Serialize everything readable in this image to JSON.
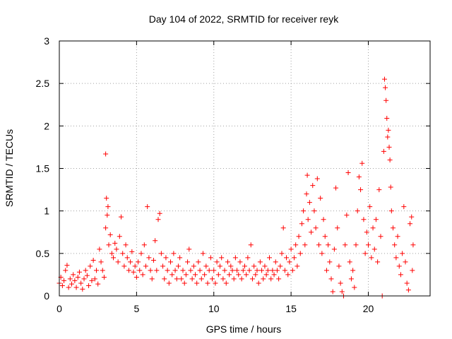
{
  "chart_data": {
    "type": "scatter",
    "title": "Day 104 of 2022, SRMTID for receiver reyk",
    "xlabel": "GPS time / hours",
    "ylabel": "SRMTID / TECUs",
    "xlim": [
      0,
      24
    ],
    "ylim": [
      0,
      3
    ],
    "x_ticks": [
      0,
      5,
      10,
      15,
      20
    ],
    "y_ticks": [
      0,
      0.5,
      1,
      1.5,
      2,
      2.5,
      3
    ],
    "x_tick_labels": [
      "0",
      "5",
      "10",
      "15",
      "20"
    ],
    "y_tick_labels": [
      "0",
      "0.5",
      "1",
      "1.5",
      "2",
      "2.5",
      "3"
    ],
    "grid": true,
    "marker": "+",
    "color": "#ff0000",
    "series": [
      {
        "name": "SRMTID",
        "points": [
          [
            0.0,
            0.15
          ],
          [
            0.1,
            0.22
          ],
          [
            0.2,
            0.12
          ],
          [
            0.3,
            0.18
          ],
          [
            0.4,
            0.3
          ],
          [
            0.5,
            0.36
          ],
          [
            0.6,
            0.1
          ],
          [
            0.7,
            0.2
          ],
          [
            0.8,
            0.14
          ],
          [
            0.9,
            0.25
          ],
          [
            1.0,
            0.18
          ],
          [
            1.1,
            0.1
          ],
          [
            1.2,
            0.22
          ],
          [
            1.3,
            0.28
          ],
          [
            1.4,
            0.15
          ],
          [
            1.5,
            0.08
          ],
          [
            1.6,
            0.2
          ],
          [
            1.7,
            0.3
          ],
          [
            1.8,
            0.24
          ],
          [
            1.9,
            0.12
          ],
          [
            2.0,
            0.35
          ],
          [
            2.1,
            0.18
          ],
          [
            2.2,
            0.42
          ],
          [
            2.3,
            0.2
          ],
          [
            2.4,
            0.3
          ],
          [
            2.5,
            0.14
          ],
          [
            2.6,
            0.55
          ],
          [
            2.7,
            0.4
          ],
          [
            2.8,
            0.3
          ],
          [
            2.9,
            0.22
          ],
          [
            3.0,
            1.67
          ],
          [
            3.0,
            0.8
          ],
          [
            3.05,
            1.15
          ],
          [
            3.1,
            0.95
          ],
          [
            3.15,
            1.05
          ],
          [
            3.2,
            0.6
          ],
          [
            3.3,
            0.72
          ],
          [
            3.4,
            0.5
          ],
          [
            3.5,
            0.45
          ],
          [
            3.6,
            0.62
          ],
          [
            3.7,
            0.55
          ],
          [
            3.8,
            0.4
          ],
          [
            3.9,
            0.7
          ],
          [
            4.0,
            0.93
          ],
          [
            4.1,
            0.5
          ],
          [
            4.2,
            0.35
          ],
          [
            4.3,
            0.6
          ],
          [
            4.4,
            0.45
          ],
          [
            4.5,
            0.3
          ],
          [
            4.6,
            0.4
          ],
          [
            4.7,
            0.52
          ],
          [
            4.8,
            0.28
          ],
          [
            4.9,
            0.35
          ],
          [
            5.0,
            0.22
          ],
          [
            5.1,
            0.4
          ],
          [
            5.2,
            0.3
          ],
          [
            5.3,
            0.5
          ],
          [
            5.4,
            0.25
          ],
          [
            5.5,
            0.6
          ],
          [
            5.6,
            0.35
          ],
          [
            5.7,
            1.05
          ],
          [
            5.8,
            0.45
          ],
          [
            5.9,
            0.3
          ],
          [
            6.0,
            0.2
          ],
          [
            6.1,
            0.42
          ],
          [
            6.2,
            0.65
          ],
          [
            6.3,
            0.3
          ],
          [
            6.4,
            0.9
          ],
          [
            6.5,
            0.97
          ],
          [
            6.6,
            0.5
          ],
          [
            6.7,
            0.35
          ],
          [
            6.8,
            0.2
          ],
          [
            6.9,
            0.45
          ],
          [
            7.0,
            0.3
          ],
          [
            7.1,
            0.15
          ],
          [
            7.2,
            0.4
          ],
          [
            7.3,
            0.25
          ],
          [
            7.4,
            0.5
          ],
          [
            7.5,
            0.3
          ],
          [
            7.6,
            0.2
          ],
          [
            7.7,
            0.35
          ],
          [
            7.8,
            0.45
          ],
          [
            7.9,
            0.2
          ],
          [
            8.0,
            0.3
          ],
          [
            8.1,
            0.15
          ],
          [
            8.2,
            0.25
          ],
          [
            8.3,
            0.4
          ],
          [
            8.4,
            0.55
          ],
          [
            8.5,
            0.3
          ],
          [
            8.6,
            0.2
          ],
          [
            8.7,
            0.35
          ],
          [
            8.8,
            0.25
          ],
          [
            8.9,
            0.15
          ],
          [
            9.0,
            0.4
          ],
          [
            9.1,
            0.3
          ],
          [
            9.2,
            0.2
          ],
          [
            9.3,
            0.5
          ],
          [
            9.4,
            0.25
          ],
          [
            9.5,
            0.35
          ],
          [
            9.6,
            0.15
          ],
          [
            9.7,
            0.3
          ],
          [
            9.8,
            0.45
          ],
          [
            9.9,
            0.2
          ],
          [
            10.0,
            0.3
          ],
          [
            10.1,
            0.15
          ],
          [
            10.2,
            0.4
          ],
          [
            10.3,
            0.25
          ],
          [
            10.4,
            0.35
          ],
          [
            10.5,
            0.45
          ],
          [
            10.6,
            0.2
          ],
          [
            10.7,
            0.3
          ],
          [
            10.8,
            0.15
          ],
          [
            10.9,
            0.4
          ],
          [
            11.0,
            0.25
          ],
          [
            11.1,
            0.35
          ],
          [
            11.2,
            0.3
          ],
          [
            11.3,
            0.2
          ],
          [
            11.4,
            0.45
          ],
          [
            11.5,
            0.3
          ],
          [
            11.6,
            0.25
          ],
          [
            11.7,
            0.4
          ],
          [
            11.8,
            0.2
          ],
          [
            11.9,
            0.3
          ],
          [
            12.0,
            0.35
          ],
          [
            12.1,
            0.25
          ],
          [
            12.2,
            0.45
          ],
          [
            12.3,
            0.3
          ],
          [
            12.4,
            0.6
          ],
          [
            12.5,
            0.2
          ],
          [
            12.6,
            0.35
          ],
          [
            12.7,
            0.25
          ],
          [
            12.8,
            0.3
          ],
          [
            12.9,
            0.15
          ],
          [
            13.0,
            0.4
          ],
          [
            13.1,
            0.3
          ],
          [
            13.2,
            0.2
          ],
          [
            13.3,
            0.35
          ],
          [
            13.4,
            0.25
          ],
          [
            13.5,
            0.3
          ],
          [
            13.6,
            0.45
          ],
          [
            13.7,
            0.2
          ],
          [
            13.8,
            0.3
          ],
          [
            13.9,
            0.25
          ],
          [
            14.0,
            0.4
          ],
          [
            14.1,
            0.3
          ],
          [
            14.2,
            0.2
          ],
          [
            14.3,
            0.35
          ],
          [
            14.4,
            0.5
          ],
          [
            14.5,
            0.8
          ],
          [
            14.6,
            0.3
          ],
          [
            14.7,
            0.45
          ],
          [
            14.8,
            0.25
          ],
          [
            14.9,
            0.4
          ],
          [
            15.0,
            0.55
          ],
          [
            15.1,
            0.3
          ],
          [
            15.2,
            0.45
          ],
          [
            15.3,
            0.6
          ],
          [
            15.4,
            0.35
          ],
          [
            15.5,
            0.7
          ],
          [
            15.6,
            0.5
          ],
          [
            15.7,
            0.85
          ],
          [
            15.8,
            1.0
          ],
          [
            15.9,
            0.6
          ],
          [
            16.0,
            1.2
          ],
          [
            16.05,
            1.42
          ],
          [
            16.1,
            0.9
          ],
          [
            16.2,
            1.1
          ],
          [
            16.3,
            0.75
          ],
          [
            16.4,
            1.3
          ],
          [
            16.5,
            1.0
          ],
          [
            16.6,
            0.8
          ],
          [
            16.7,
            1.38
          ],
          [
            16.8,
            0.6
          ],
          [
            16.9,
            1.15
          ],
          [
            17.0,
            0.5
          ],
          [
            17.1,
            0.9
          ],
          [
            17.2,
            0.7
          ],
          [
            17.3,
            0.3
          ],
          [
            17.4,
            0.6
          ],
          [
            17.5,
            0.4
          ],
          [
            17.6,
            0.2
          ],
          [
            17.7,
            0.05
          ],
          [
            17.8,
            0.55
          ],
          [
            17.9,
            1.27
          ],
          [
            18.0,
            0.8
          ],
          [
            18.1,
            0.35
          ],
          [
            18.2,
            0.15
          ],
          [
            18.3,
            0.05
          ],
          [
            18.4,
            0.0
          ],
          [
            18.5,
            0.6
          ],
          [
            18.6,
            0.95
          ],
          [
            18.7,
            1.45
          ],
          [
            18.8,
            0.4
          ],
          [
            18.9,
            0.2
          ],
          [
            19.0,
            0.3
          ],
          [
            19.1,
            0.1
          ],
          [
            19.2,
            0.6
          ],
          [
            19.3,
            1.0
          ],
          [
            19.4,
            1.4
          ],
          [
            19.5,
            1.25
          ],
          [
            19.6,
            1.56
          ],
          [
            19.7,
            0.9
          ],
          [
            19.8,
            0.5
          ],
          [
            19.9,
            0.75
          ],
          [
            20.0,
            0.6
          ],
          [
            20.1,
            1.05
          ],
          [
            20.2,
            0.45
          ],
          [
            20.3,
            0.8
          ],
          [
            20.4,
            0.55
          ],
          [
            20.5,
            0.9
          ],
          [
            20.6,
            0.4
          ],
          [
            20.7,
            1.25
          ],
          [
            20.8,
            0.7
          ],
          [
            20.9,
            0.0
          ],
          [
            21.0,
            1.7
          ],
          [
            21.05,
            2.55
          ],
          [
            21.1,
            2.45
          ],
          [
            21.15,
            2.3
          ],
          [
            21.2,
            2.09
          ],
          [
            21.25,
            1.87
          ],
          [
            21.3,
            1.95
          ],
          [
            21.35,
            1.75
          ],
          [
            21.4,
            1.6
          ],
          [
            21.45,
            1.28
          ],
          [
            21.5,
            1.0
          ],
          [
            21.6,
            0.8
          ],
          [
            21.7,
            0.6
          ],
          [
            21.8,
            0.45
          ],
          [
            21.9,
            0.7
          ],
          [
            22.0,
            0.35
          ],
          [
            22.1,
            0.25
          ],
          [
            22.2,
            0.5
          ],
          [
            22.3,
            1.05
          ],
          [
            22.4,
            0.4
          ],
          [
            22.5,
            0.15
          ],
          [
            22.6,
            0.07
          ],
          [
            22.7,
            0.85
          ],
          [
            22.8,
            0.93
          ],
          [
            22.85,
            0.3
          ],
          [
            22.9,
            0.6
          ]
        ]
      }
    ]
  }
}
